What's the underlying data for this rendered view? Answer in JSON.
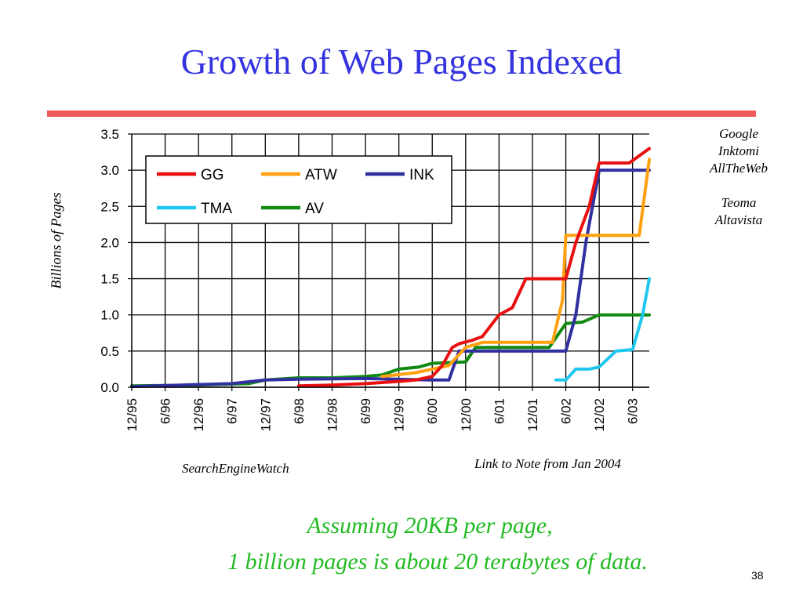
{
  "slide": {
    "title": "Growth of Web Pages Indexed",
    "engine_names": [
      "Google",
      "Inktomi",
      "AllTheWeb",
      "Teoma",
      "Altavista"
    ],
    "source_note": "SearchEngineWatch",
    "link_note": "Link to Note from Jan 2004",
    "footnote_line1": "Assuming 20KB per page,",
    "footnote_line2": "1 billion pages is about 20 terabytes of data.",
    "page_number": "38",
    "title_color": "#3333e0",
    "rule_color": "#f05a5a",
    "footnote_color": "#22bb22"
  },
  "chart_data": {
    "type": "line",
    "title": "",
    "xlabel": "",
    "ylabel": "Billions of Pages",
    "x_tick_labels": [
      "12/95",
      "6/96",
      "12/96",
      "6/97",
      "12/97",
      "6/98",
      "12/98",
      "6/99",
      "12/99",
      "6/00",
      "12/00",
      "6/01",
      "12/01",
      "6/02",
      "12/02",
      "6/03"
    ],
    "xlim": [
      0,
      15.5
    ],
    "ylim": [
      0,
      3.5
    ],
    "y_ticks": [
      "0.0",
      "0.5",
      "1.0",
      "1.5",
      "2.0",
      "2.5",
      "3.0",
      "3.5"
    ],
    "grid": true,
    "legend_position": "top-left",
    "series": [
      {
        "name": "GG",
        "color": "#e81010",
        "points": [
          [
            5.0,
            0.02
          ],
          [
            6.0,
            0.03
          ],
          [
            7.0,
            0.05
          ],
          [
            8.0,
            0.08
          ],
          [
            8.5,
            0.1
          ],
          [
            9.0,
            0.15
          ],
          [
            9.3,
            0.3
          ],
          [
            9.6,
            0.55
          ],
          [
            9.8,
            0.6
          ],
          [
            10.2,
            0.65
          ],
          [
            10.5,
            0.7
          ],
          [
            11.0,
            1.0
          ],
          [
            11.4,
            1.1
          ],
          [
            11.8,
            1.5
          ],
          [
            12.5,
            1.5
          ],
          [
            13.0,
            1.5
          ],
          [
            13.3,
            2.0
          ],
          [
            13.7,
            2.5
          ],
          [
            14.0,
            3.1
          ],
          [
            14.9,
            3.1
          ],
          [
            15.5,
            3.3
          ]
        ]
      },
      {
        "name": "ATW",
        "color": "#ffa010",
        "points": [
          [
            7.5,
            0.15
          ],
          [
            8.5,
            0.2
          ],
          [
            9.0,
            0.25
          ],
          [
            9.5,
            0.3
          ],
          [
            10.0,
            0.55
          ],
          [
            10.5,
            0.62
          ],
          [
            12.6,
            0.62
          ],
          [
            12.9,
            1.2
          ],
          [
            13.0,
            2.1
          ],
          [
            14.0,
            2.1
          ],
          [
            15.2,
            2.1
          ],
          [
            15.5,
            3.15
          ]
        ]
      },
      {
        "name": "INK",
        "color": "#3030a0",
        "points": [
          [
            0.0,
            0.01
          ],
          [
            1.5,
            0.03
          ],
          [
            3.0,
            0.05
          ],
          [
            4.0,
            0.1
          ],
          [
            5.0,
            0.11
          ],
          [
            7.0,
            0.12
          ],
          [
            9.0,
            0.1
          ],
          [
            9.5,
            0.1
          ],
          [
            9.8,
            0.5
          ],
          [
            10.5,
            0.5
          ],
          [
            12.5,
            0.5
          ],
          [
            13.0,
            0.5
          ],
          [
            13.3,
            1.0
          ],
          [
            13.6,
            2.0
          ],
          [
            14.0,
            3.0
          ],
          [
            15.5,
            3.0
          ]
        ]
      },
      {
        "name": "TMA",
        "color": "#20c8f0",
        "points": [
          [
            12.7,
            0.1
          ],
          [
            13.0,
            0.1
          ],
          [
            13.3,
            0.25
          ],
          [
            13.7,
            0.25
          ],
          [
            14.0,
            0.28
          ],
          [
            14.5,
            0.5
          ],
          [
            15.0,
            0.52
          ],
          [
            15.3,
            1.0
          ],
          [
            15.5,
            1.5
          ]
        ]
      },
      {
        "name": "AV",
        "color": "#128a12",
        "points": [
          [
            0.0,
            0.02
          ],
          [
            2.0,
            0.03
          ],
          [
            3.5,
            0.05
          ],
          [
            4.0,
            0.1
          ],
          [
            5.0,
            0.13
          ],
          [
            6.0,
            0.13
          ],
          [
            7.0,
            0.15
          ],
          [
            7.5,
            0.17
          ],
          [
            8.0,
            0.25
          ],
          [
            8.6,
            0.28
          ],
          [
            9.0,
            0.33
          ],
          [
            10.0,
            0.35
          ],
          [
            10.3,
            0.55
          ],
          [
            12.5,
            0.55
          ],
          [
            13.0,
            0.88
          ],
          [
            13.5,
            0.9
          ],
          [
            14.0,
            1.0
          ],
          [
            15.5,
            1.0
          ]
        ]
      }
    ]
  }
}
